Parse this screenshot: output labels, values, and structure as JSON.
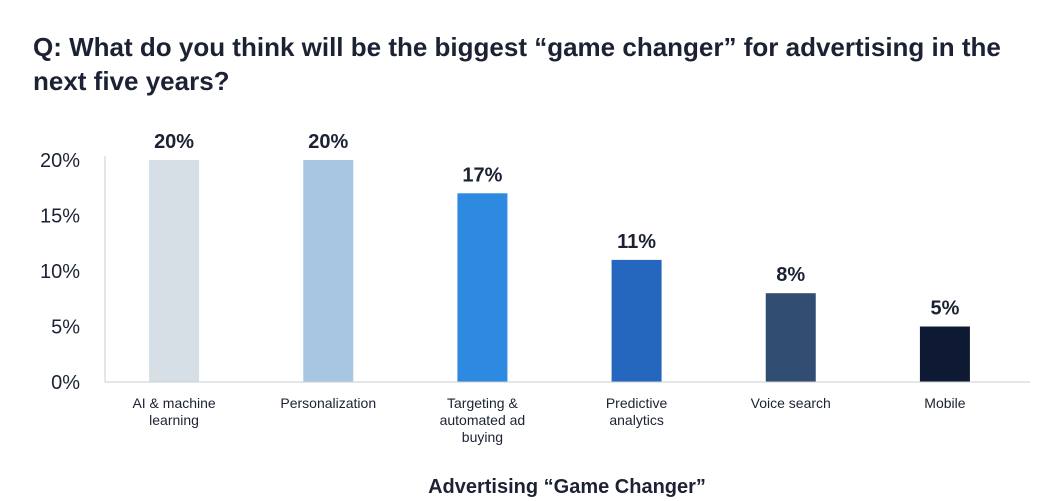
{
  "chart_data": {
    "type": "bar",
    "title": "Q: What do you think will be the biggest “game changer” for advertising in the next five years?",
    "xlabel": "Advertising “Game Changer”",
    "ylabel": "",
    "ylim": [
      0,
      20
    ],
    "yticks": [
      0,
      5,
      10,
      15,
      20
    ],
    "ytick_labels": [
      "0%",
      "5%",
      "10%",
      "15%",
      "20%"
    ],
    "grid": false,
    "categories": [
      [
        "AI & machine",
        "learning"
      ],
      [
        "Personalization"
      ],
      [
        "Targeting &",
        "automated ad",
        "buying"
      ],
      [
        "Predictive",
        "analytics"
      ],
      [
        "Voice search"
      ],
      [
        "Mobile"
      ]
    ],
    "values": [
      20,
      20,
      17,
      11,
      8,
      5
    ],
    "value_labels": [
      "20%",
      "20%",
      "17%",
      "11%",
      "8%",
      "5%"
    ],
    "colors": [
      "#d5dfe5",
      "#a7c6e2",
      "#2e89e0",
      "#2566bf",
      "#324d72",
      "#0e1a33"
    ]
  }
}
